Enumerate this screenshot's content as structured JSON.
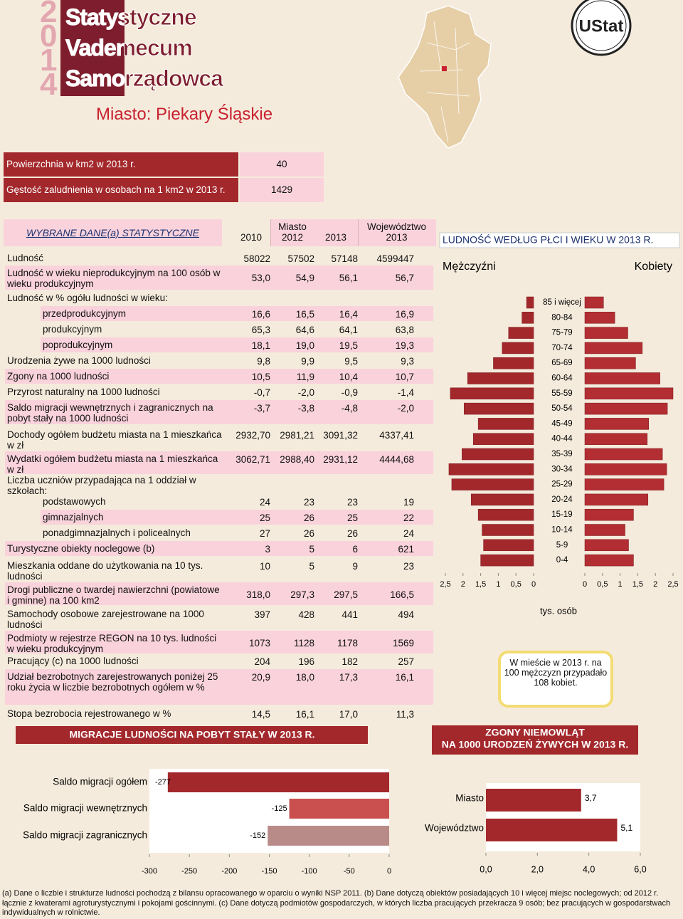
{
  "header": {
    "year": "2014",
    "logo_lines": [
      "Statystyczne",
      "Vademecum",
      "Samorządowca"
    ],
    "badge": "UStat",
    "title": "Miasto: Piekary Śląskie"
  },
  "area_table": {
    "rows": [
      [
        "Powierzchnia w km2 w 2013 r.",
        "40"
      ],
      [
        "Gęstość zaludnienia w osobach na 1 km2 w 2013 r.",
        "1429"
      ]
    ]
  },
  "stats_table": {
    "title": "WYBRANE DANE(a) STATYSTYCZNE",
    "city_label": "Miasto",
    "columns": [
      "2010",
      "2012",
      "2013"
    ],
    "region_label": "Województwo",
    "region_year": "2013",
    "rows": [
      {
        "label": "Ludność",
        "values": [
          "58022",
          "57502",
          "57148",
          "4599447"
        ]
      },
      {
        "label": "Ludność w wieku nieprodukcyjnym na 100 osób w wieku produkcyjnym",
        "values": [
          "53,0",
          "54,9",
          "56,1",
          "56,7"
        ]
      },
      {
        "label": "Ludność w % ogółu ludności w wieku:"
      },
      {
        "label": "przedprodukcyjnym",
        "values": [
          "16,6",
          "16,5",
          "16,4",
          "16,9"
        ]
      },
      {
        "label": "produkcyjnym",
        "values": [
          "65,3",
          "64,6",
          "64,1",
          "63,8"
        ]
      },
      {
        "label": "poprodukcyjnym",
        "values": [
          "18,1",
          "19,0",
          "19,5",
          "19,3"
        ]
      },
      {
        "label": "Urodzenia żywe na 1000 ludności",
        "values": [
          "9,8",
          "9,9",
          "9,5",
          "9,3"
        ]
      },
      {
        "label": "Zgony na 1000 ludności",
        "values": [
          "10,5",
          "11,9",
          "10,4",
          "10,7"
        ]
      },
      {
        "label": "Przyrost naturalny na 1000 ludności",
        "values": [
          "-0,7",
          "-2,0",
          "-0,9",
          "-1,4"
        ]
      },
      {
        "label": "Saldo migracji wewnętrznych i zagranicznych na pobyt stały na 1000 ludności",
        "values": [
          "-3,7",
          "-3,8",
          "-4,8",
          "-2,0"
        ]
      },
      {
        "label": "Dochody ogółem budżetu miasta na 1 mieszkańca w zł",
        "values": [
          "2932,70",
          "2981,21",
          "3091,32",
          "4337,41"
        ]
      },
      {
        "label": "Wydatki ogółem budżetu miasta na 1 mieszkańca w zł",
        "values": [
          "3062,71",
          "2988,40",
          "2931,12",
          "4444,68"
        ]
      },
      {
        "label": "Liczba uczniów przypadająca na 1 oddział w szkołach:"
      },
      {
        "label": "podstawowych",
        "values": [
          "24",
          "23",
          "23",
          "19"
        ]
      },
      {
        "label": "gimnazjalnych",
        "values": [
          "25",
          "26",
          "25",
          "22"
        ]
      },
      {
        "label": "ponadgimnazjalnych i policealnych",
        "values": [
          "27",
          "26",
          "26",
          "24"
        ]
      },
      {
        "label": "Turystyczne obiekty noclegowe (b)",
        "values": [
          "3",
          "5",
          "6",
          "621"
        ]
      },
      {
        "label": "Mieszkania oddane do użytkowania na 10 tys. ludności",
        "values": [
          "10",
          "5",
          "9",
          "23"
        ]
      },
      {
        "label": "Drogi publiczne o twardej nawierzchni (powiatowe i gminne) na 100 km2",
        "values": [
          "318,0",
          "297,3",
          "297,5",
          "166,5"
        ]
      },
      {
        "label": "Samochody osobowe zarejestrowane na 1000 ludności",
        "values": [
          "397",
          "428",
          "441",
          "494"
        ]
      },
      {
        "label": "Podmioty w rejestrze REGON na 10 tys. ludności w wieku produkcyjnym",
        "values": [
          "1073",
          "1128",
          "1178",
          "1569"
        ]
      },
      {
        "label": "Pracujący (c) na 1000 ludności",
        "values": [
          "204",
          "196",
          "182",
          "257"
        ]
      },
      {
        "label": "Udział bezrobotnych zarejestrowanych poniżej 25 roku życia w liczbie bezrobotnych ogółem w %",
        "values": [
          "20,9",
          "18,0",
          "17,3",
          "16,1"
        ]
      },
      {
        "label": "Stopa bezrobocia rejestrowanego w %",
        "values": [
          "14,5",
          "16,1",
          "17,0",
          "11,3"
        ]
      }
    ]
  },
  "sex_ratio_note": "W mieście w 2013 r. na 100 mężczyzn przypadało 108 kobiet.",
  "footnote": "(a) Dane o liczbie i strukturze ludności pochodzą z bilansu opracowanego w oparciu o wyniki NSP 2011. (b) Dane dotyczą obiektów posiadających 10 i więcej miejsc noclegowych; od 2012 r. łącznie z kwaterami agroturystycznymi i pokojami gościnnymi. (c) Dane dotyczą podmiotów gospodarczych, w których liczba pracujących przekracza 9 osób; bez pracujących w gospodarstwach indywidualnych w rolnictwie.",
  "chart_data": [
    {
      "type": "pyramid",
      "title": "LUDNOŚĆ WEDŁUG PŁCI I WIEKU W 2013 R.",
      "categories": [
        "85 i więcej",
        "80-84",
        "75-79",
        "70-74",
        "65-69",
        "60-64",
        "55-59",
        "50-54",
        "45-49",
        "40-44",
        "35-39",
        "30-34",
        "25-29",
        "20-24",
        "15-19",
        "10-14",
        "5-9",
        "0-4"
      ],
      "series": [
        {
          "name": "Mężczyźni",
          "color": "#a3282c",
          "values": [
            0.2,
            0.33,
            0.71,
            0.89,
            1.14,
            1.87,
            2.36,
            1.97,
            1.57,
            1.71,
            2.03,
            2.4,
            2.32,
            1.77,
            1.57,
            1.46,
            1.42,
            1.5
          ]
        },
        {
          "name": "Kobiety",
          "color": "#b32e33",
          "values": [
            0.53,
            0.85,
            1.22,
            1.63,
            1.44,
            2.13,
            2.5,
            2.34,
            1.81,
            1.77,
            2.2,
            2.32,
            2.24,
            1.79,
            1.38,
            1.14,
            1.24,
            1.38
          ]
        }
      ],
      "xlim": [
        0,
        2.5
      ],
      "xticks": [
        0,
        {
          "value": 0.5,
          "label": "0,5"
        },
        1,
        {
          "value": 1.5,
          "label": "1,5"
        },
        2,
        {
          "value": 2.5,
          "label": "2,5"
        }
      ],
      "xlabel": "tys. osób"
    },
    {
      "type": "hbar",
      "title": "MIGRACJE LUDNOŚCI NA POBYT STAŁY W 2013 R.",
      "categories": [
        "Saldo migracji ogółem",
        "Saldo migracji wewnętrznych",
        "Saldo migracji zagranicznych"
      ],
      "values": [
        -277,
        -125,
        -152
      ],
      "colors": [
        "#a3282c",
        "#c9504f",
        "#b98b88"
      ],
      "xlim": [
        -300,
        0
      ],
      "xticks": [
        -300,
        -250,
        -200,
        -150,
        -100,
        -50,
        0
      ]
    },
    {
      "type": "hbar",
      "title": [
        "ZGONY NIEMOWLĄT",
        "NA 1000 URODZEŃ ŻYWYCH W 2013 R."
      ],
      "categories": [
        "Miasto",
        "Województwo"
      ],
      "values": [
        3.7,
        5.1
      ],
      "value_labels": [
        "3,7",
        "5,1"
      ],
      "color": "#a3282c",
      "xlim": [
        0,
        6
      ],
      "xticks": [
        {
          "value": 0,
          "label": "0,0"
        },
        {
          "value": 2,
          "label": "2,0"
        },
        {
          "value": 4,
          "label": "4,0"
        },
        {
          "value": 6,
          "label": "6,0"
        }
      ]
    }
  ]
}
